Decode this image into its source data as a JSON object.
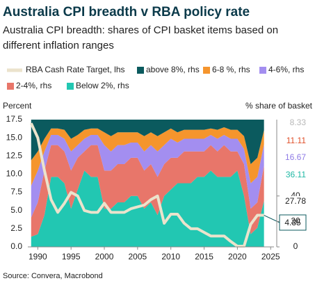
{
  "chart_data": {
    "type": "area",
    "stacked": true,
    "title": "Australia CPI breadth v RBA policy rate",
    "subtitle": "Australia CPI breadth: shares of CPI basket items based on different inflation ranges",
    "y_label": "Percent",
    "y2_label": "% share of basket",
    "source": "Source: Convera, Macrobond",
    "x": [
      1989,
      1990,
      1991,
      1992,
      1993,
      1994,
      1995,
      1996,
      1997,
      1998,
      1999,
      2000,
      2001,
      2002,
      2003,
      2004,
      2005,
      2006,
      2007,
      2008,
      2009,
      2010,
      2011,
      2012,
      2013,
      2014,
      2015,
      2016,
      2017,
      2018,
      2019,
      2020,
      2021,
      2022,
      2023,
      2024
    ],
    "xlim": [
      1988.5,
      2025.5
    ],
    "xticks": [
      1990,
      1995,
      2000,
      2005,
      2010,
      2015,
      2020,
      2025
    ],
    "ylim": [
      0,
      17.5
    ],
    "yticks": [
      {
        "value": 0,
        "label": "0.0"
      },
      {
        "value": 2.5,
        "label": "2.5"
      },
      {
        "value": 5,
        "label": "5.0"
      },
      {
        "value": 7.5,
        "label": "7.5"
      },
      {
        "value": 10,
        "label": "10.0"
      },
      {
        "value": 12.5,
        "label": "12.5"
      },
      {
        "value": 15,
        "label": "15.0"
      },
      {
        "value": 17.5,
        "label": "17.5"
      }
    ],
    "y2lim": [
      0,
      100
    ],
    "y2ticks": [
      0,
      20,
      40
    ],
    "series": [
      {
        "name": "RBA Cash Rate Target, lhs",
        "color": "#ebe3cc",
        "line": true,
        "axis": "y",
        "values": [
          17,
          15,
          10.5,
          6.5,
          4.75,
          6,
          7.5,
          7,
          5,
          4.75,
          4.75,
          6,
          4.75,
          4.75,
          4.75,
          5.25,
          5.5,
          5.75,
          6.5,
          7,
          3.25,
          4.5,
          4.5,
          3.25,
          2.5,
          2.5,
          2,
          1.5,
          1.5,
          1.5,
          0.75,
          0.1,
          0.1,
          3.1,
          4.35,
          4.35
        ]
      },
      {
        "name": "Below 2%, rhs",
        "color": "#22c7b2",
        "axis": "y2",
        "values": [
          8,
          10,
          25,
          55,
          55,
          50,
          30,
          45,
          60,
          55,
          55,
          30,
          30,
          35,
          35,
          40,
          40,
          30,
          35,
          25,
          40,
          45,
          50,
          50,
          50,
          55,
          55,
          60,
          55,
          55,
          55,
          60,
          40,
          10,
          15,
          36.11
        ]
      },
      {
        "name": "2-4%, rhs",
        "color": "#e8766a",
        "axis": "y2",
        "values": [
          15,
          25,
          35,
          25,
          25,
          25,
          30,
          25,
          15,
          25,
          25,
          30,
          30,
          30,
          30,
          30,
          30,
          30,
          30,
          30,
          25,
          25,
          20,
          25,
          25,
          20,
          20,
          20,
          20,
          25,
          20,
          15,
          25,
          20,
          20,
          27.78
        ]
      },
      {
        "name": "4-6%, rhs",
        "color": "#a38ef0",
        "axis": "y2",
        "values": [
          25,
          25,
          15,
          8,
          8,
          10,
          15,
          10,
          10,
          8,
          8,
          20,
          15,
          15,
          15,
          12,
          12,
          15,
          15,
          20,
          15,
          15,
          12,
          10,
          10,
          10,
          10,
          8,
          10,
          8,
          10,
          10,
          12,
          20,
          20,
          16.67
        ]
      },
      {
        "name": "6-8 %, rhs",
        "color": "#f5952d",
        "axis": "y2",
        "values": [
          20,
          15,
          10,
          5,
          5,
          7,
          10,
          8,
          7,
          5,
          5,
          10,
          12,
          10,
          10,
          8,
          8,
          12,
          10,
          12,
          10,
          8,
          8,
          7,
          7,
          7,
          7,
          5,
          7,
          6,
          7,
          7,
          10,
          15,
          15,
          11.11
        ]
      },
      {
        "name": "above 8%, rhs",
        "color": "#0b5a5e",
        "axis": "y2",
        "values": [
          32,
          25,
          15,
          7,
          7,
          8,
          15,
          12,
          8,
          7,
          7,
          10,
          13,
          10,
          10,
          10,
          10,
          13,
          10,
          13,
          10,
          7,
          10,
          8,
          8,
          8,
          8,
          7,
          8,
          6,
          8,
          8,
          13,
          35,
          30,
          8.33
        ]
      }
    ]
  }
}
